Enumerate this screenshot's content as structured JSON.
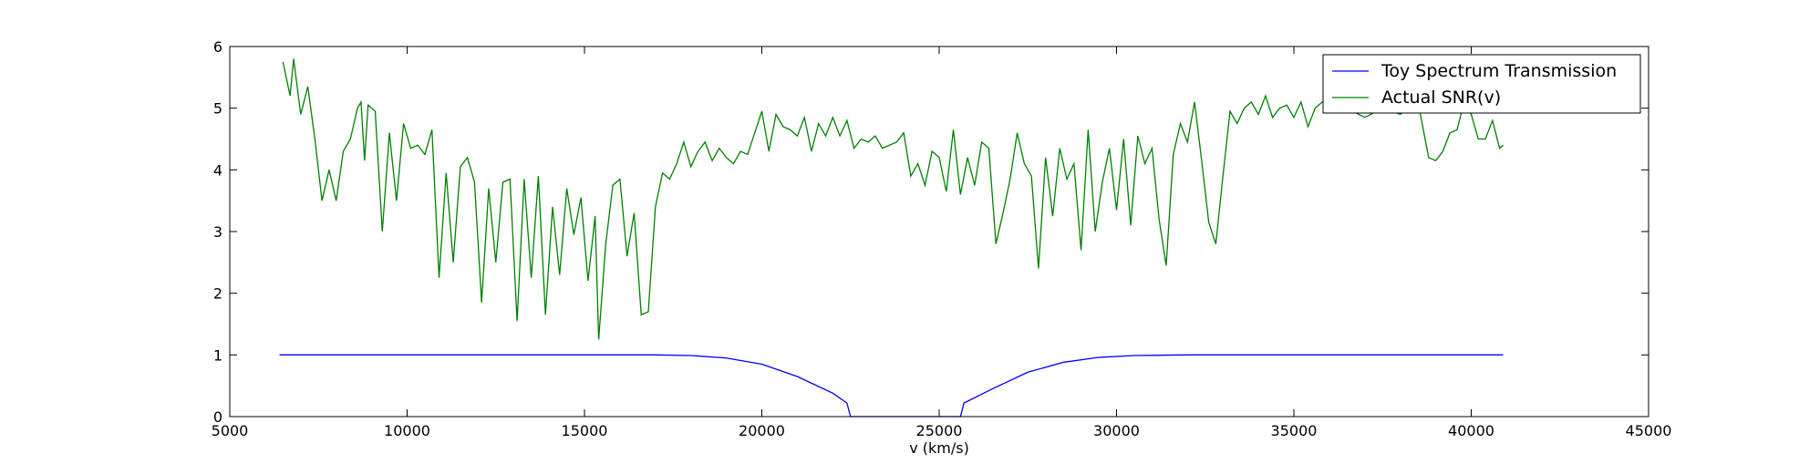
{
  "chart_data": {
    "type": "line",
    "x_label": "v (km/s)",
    "xlim": [
      5000,
      45000
    ],
    "xticks": [
      5000,
      10000,
      15000,
      20000,
      25000,
      30000,
      35000,
      40000,
      45000
    ],
    "ylim": [
      0,
      6
    ],
    "yticks": [
      0,
      1,
      2,
      3,
      4,
      5,
      6
    ],
    "grid": false,
    "legend": "upper right",
    "series": [
      {
        "name": "Toy Spectrum Transmission",
        "color": "#0000ff",
        "x": [
          6400,
          17000,
          18000,
          19000,
          20000,
          21000,
          22000,
          22400,
          22500,
          25600,
          25700,
          26500,
          27500,
          28500,
          29500,
          30500,
          32000,
          40900
        ],
        "values": [
          1,
          1,
          0.99,
          0.95,
          0.85,
          0.65,
          0.38,
          0.22,
          0,
          0,
          0.22,
          0.45,
          0.72,
          0.88,
          0.96,
          0.99,
          1,
          1
        ]
      },
      {
        "name": "Actual SNR(v)",
        "color": "#008000",
        "x": [
          6500,
          6700,
          6800,
          7000,
          7200,
          7400,
          7600,
          7800,
          8000,
          8200,
          8400,
          8600,
          8700,
          8800,
          8900,
          9100,
          9300,
          9500,
          9700,
          9900,
          10100,
          10300,
          10500,
          10700,
          10900,
          11100,
          11300,
          11500,
          11700,
          11900,
          12100,
          12300,
          12500,
          12700,
          12900,
          13100,
          13300,
          13500,
          13700,
          13900,
          14100,
          14300,
          14500,
          14700,
          14900,
          15100,
          15300,
          15400,
          15600,
          15800,
          16000,
          16200,
          16400,
          16600,
          16800,
          17000,
          17200,
          17400,
          17600,
          17800,
          18000,
          18200,
          18400,
          18600,
          18800,
          19000,
          19200,
          19400,
          19600,
          19800,
          20000,
          20200,
          20400,
          20600,
          20800,
          21000,
          21200,
          21400,
          21600,
          21800,
          22000,
          22200,
          22400,
          22600,
          22800,
          23000,
          23200,
          23400,
          23600,
          23800,
          24000,
          24200,
          24400,
          24600,
          24800,
          25000,
          25200,
          25400,
          25600,
          25800,
          26000,
          26200,
          26400,
          26600,
          26800,
          27000,
          27200,
          27400,
          27600,
          27800,
          28000,
          28200,
          28400,
          28600,
          28800,
          29000,
          29200,
          29400,
          29600,
          29800,
          30000,
          30200,
          30400,
          30600,
          30800,
          31000,
          31200,
          31400,
          31600,
          31800,
          32000,
          32200,
          32400,
          32600,
          32800,
          33000,
          33200,
          33400,
          33600,
          33800,
          34000,
          34200,
          34400,
          34600,
          34800,
          35000,
          35200,
          35400,
          35600,
          35800,
          36000,
          36500,
          37000,
          37500,
          38000,
          38500,
          38800,
          39000,
          39200,
          39400,
          39600,
          39800,
          40000,
          40200,
          40400,
          40600,
          40800,
          40900
        ],
        "values": [
          5.75,
          5.2,
          5.8,
          4.9,
          5.35,
          4.5,
          3.5,
          4.0,
          3.5,
          4.3,
          4.5,
          5.0,
          5.1,
          4.15,
          5.05,
          4.95,
          3.0,
          4.6,
          3.5,
          4.75,
          4.35,
          4.4,
          4.25,
          4.65,
          2.25,
          3.95,
          2.5,
          4.05,
          4.2,
          3.8,
          1.85,
          3.7,
          2.5,
          3.8,
          3.85,
          1.55,
          3.85,
          2.25,
          3.9,
          1.65,
          3.4,
          2.3,
          3.7,
          2.95,
          3.55,
          2.2,
          3.25,
          1.25,
          2.8,
          3.75,
          3.85,
          2.6,
          3.3,
          1.65,
          1.7,
          3.4,
          3.95,
          3.85,
          4.1,
          4.45,
          4.05,
          4.3,
          4.45,
          4.15,
          4.35,
          4.2,
          4.1,
          4.3,
          4.25,
          4.6,
          4.95,
          4.3,
          4.9,
          4.7,
          4.65,
          4.55,
          4.85,
          4.3,
          4.75,
          4.55,
          4.85,
          4.55,
          4.8,
          4.35,
          4.5,
          4.45,
          4.55,
          4.35,
          4.4,
          4.45,
          4.6,
          3.9,
          4.1,
          3.75,
          4.3,
          4.2,
          3.65,
          4.65,
          3.6,
          4.2,
          3.75,
          4.45,
          4.35,
          2.8,
          3.3,
          3.85,
          4.6,
          4.1,
          3.9,
          2.4,
          4.2,
          3.25,
          4.35,
          3.85,
          4.1,
          2.7,
          4.65,
          3.0,
          3.8,
          4.35,
          3.35,
          4.5,
          3.1,
          4.55,
          4.1,
          4.35,
          3.2,
          2.45,
          4.25,
          4.75,
          4.45,
          5.1,
          4.15,
          3.15,
          2.8,
          3.9,
          4.95,
          4.75,
          5.0,
          5.1,
          4.9,
          5.2,
          4.85,
          5.0,
          5.05,
          4.85,
          5.1,
          4.7,
          5.0,
          5.1,
          5.2,
          5.0,
          4.85,
          5.0,
          4.9,
          5.1,
          4.2,
          4.15,
          4.3,
          4.6,
          4.65,
          5.1,
          4.9,
          4.5,
          4.5,
          4.8,
          4.35,
          4.4
        ]
      }
    ]
  }
}
